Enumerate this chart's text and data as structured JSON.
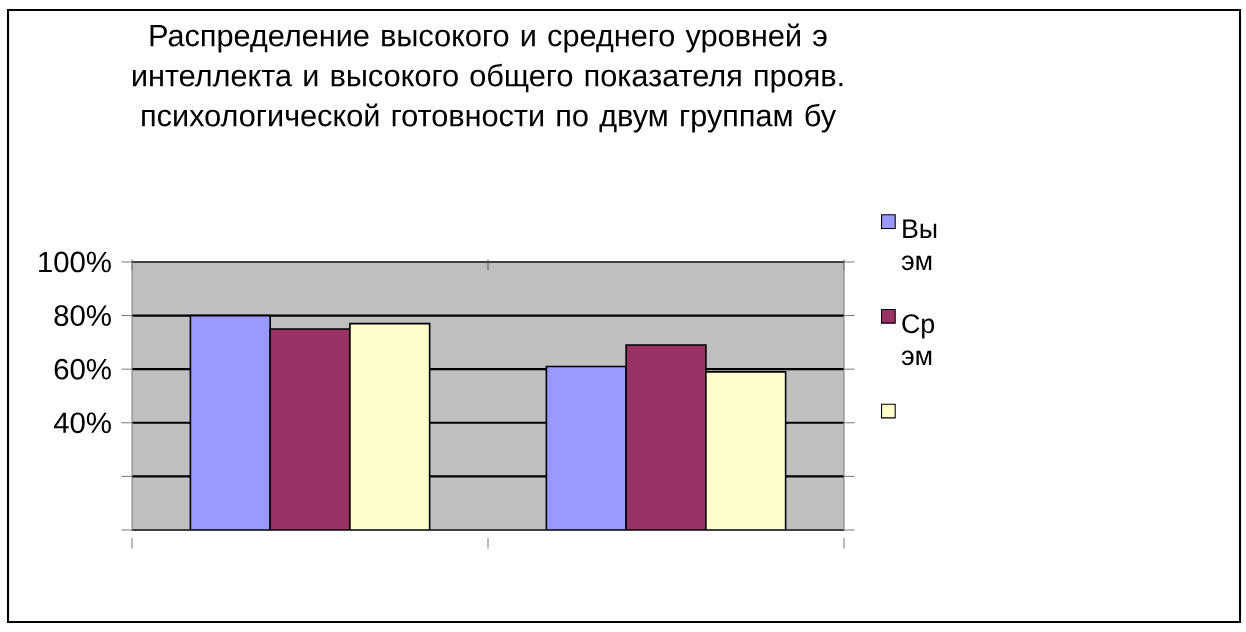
{
  "chart_data": {
    "type": "bar",
    "title": "Распределение высокого и среднего уровней э интеллекта и высокого общего показателя прояв. психологической готовности по двум группам бу",
    "categories": [
      null,
      null
    ],
    "series": [
      {
        "name": "Вы эм",
        "color": "#9999ff",
        "values": [
          80,
          61
        ]
      },
      {
        "name": "Ср эм",
        "color": "#993366",
        "values": [
          75,
          69
        ]
      },
      {
        "color": "#ffffcc",
        "values": [
          77,
          59
        ]
      }
    ],
    "ylim": [
      0,
      100
    ],
    "yticks": [
      {
        "value": 0,
        "label": null
      },
      {
        "value": 20,
        "label": null
      },
      {
        "value": 40,
        "label": "40%"
      },
      {
        "value": 60,
        "label": "60%"
      },
      {
        "value": 80,
        "label": "80%"
      },
      {
        "value": 100,
        "label": "100%"
      }
    ],
    "grid": "y",
    "legend": "right",
    "tick_labels": "y"
  }
}
